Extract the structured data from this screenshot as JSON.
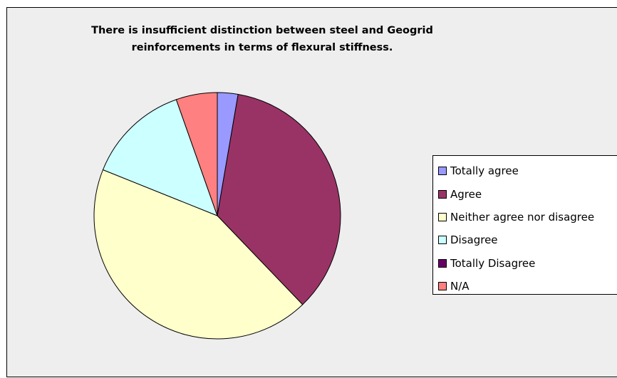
{
  "chart_data": {
    "type": "pie",
    "title": [
      "There is insufficient distinction between steel and Geogrid",
      "reinforcements in terms of flexural stiffness."
    ],
    "series": [
      {
        "categories": [
          "Totally agree",
          "Agree",
          "Neither agree nor disagree",
          "Disagree",
          "Totally Disagree",
          "N/A"
        ],
        "values": [
          2.7,
          35.1,
          43.2,
          13.5,
          0,
          5.4
        ],
        "unit": "%"
      }
    ],
    "colors": [
      "#9999ff",
      "#993366",
      "#ffffcc",
      "#ccffff",
      "#660066",
      "#ff8080"
    ],
    "legend_position": "right",
    "background": "#eeeeee"
  }
}
